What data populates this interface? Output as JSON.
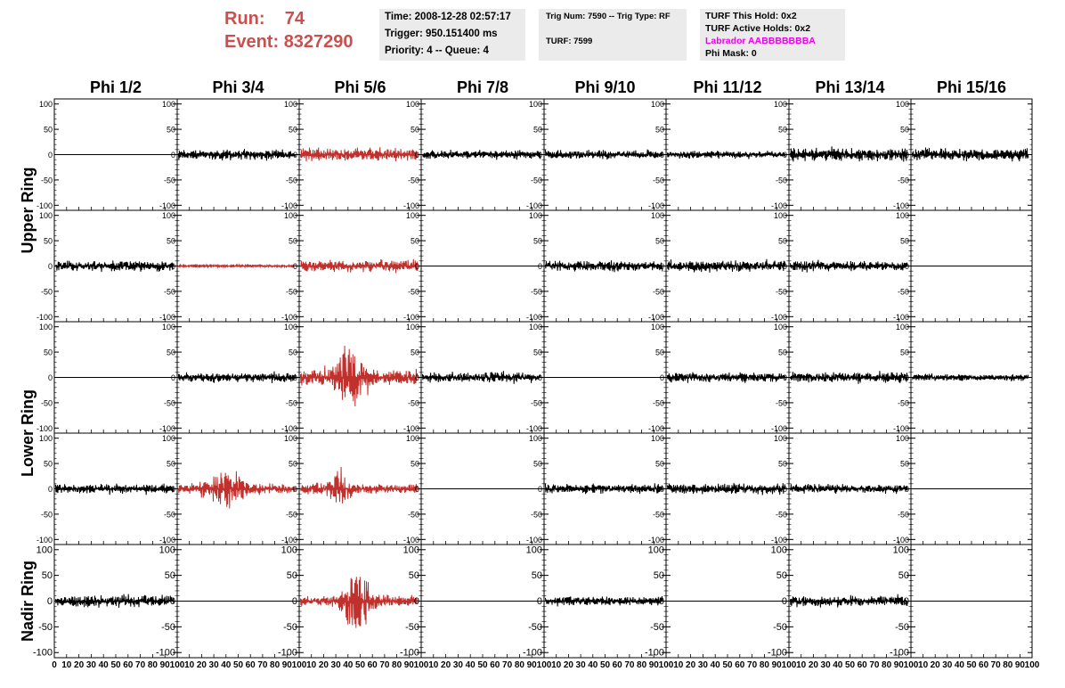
{
  "header": {
    "run_label": "Run:",
    "run_value": "74",
    "event_label": "Event:",
    "event_value": "8327290"
  },
  "info_panel_1": {
    "time": "Time: 2008-12-28 02:57:17",
    "trigger": "Trigger: 950.151400 ms",
    "priority": "Priority: 4 -- Queue: 4"
  },
  "info_panel_2": {
    "trig": "Trig Num: 7590 -- Trig Type: RF",
    "turf": "TURF: 7599"
  },
  "info_panel_3": {
    "this_hold": "TURF This Hold: 0x2",
    "active_holds": "TURF Active Holds: 0x2",
    "labrador": "Labrador AABBBBBBBA",
    "phi_mask": "Phi Mask: 0"
  },
  "colors": {
    "header_red": "#c8504f",
    "trace_black": "#000000",
    "trace_red": "#c0302c",
    "labrador_magenta": "#ee00ee",
    "panel_gray": "#ebebeb"
  },
  "chart_data": {
    "type": "line",
    "columns": [
      "Phi 1/2",
      "Phi 3/4",
      "Phi 5/6",
      "Phi 7/8",
      "Phi 9/10",
      "Phi 11/12",
      "Phi 13/14",
      "Phi 15/16"
    ],
    "row_titles": [
      {
        "label": "Upper Ring",
        "rows": [
          0,
          1
        ]
      },
      {
        "label": "Lower Ring",
        "rows": [
          2,
          3
        ]
      },
      {
        "label": "Nadir Ring",
        "rows": [
          4
        ]
      }
    ],
    "yticks": [
      100,
      50,
      0,
      -50,
      -100
    ],
    "ylim": [
      -110,
      110
    ],
    "xlim": [
      0,
      100
    ],
    "xticks": [
      0,
      10,
      20,
      30,
      40,
      50,
      60,
      70,
      80,
      90,
      100
    ],
    "xtick_labels": [
      "0",
      "10",
      "20",
      "30",
      "40",
      "50",
      "60",
      "70",
      "80",
      "90",
      "100"
    ],
    "last_col_xtick_labels": [
      "10",
      "20",
      "30",
      "40",
      "50",
      "60",
      "70",
      "80",
      "90",
      "100"
    ],
    "panels": [
      [
        {
          "style": "flat"
        },
        {
          "style": "noise",
          "amp": 14,
          "color": "black"
        },
        {
          "style": "noise",
          "amp": 18,
          "color": "red"
        },
        {
          "style": "noise",
          "amp": 12,
          "color": "black"
        },
        {
          "style": "noise",
          "amp": 12,
          "color": "black"
        },
        {
          "style": "noise",
          "amp": 10,
          "color": "black"
        },
        {
          "style": "noise",
          "amp": 18,
          "color": "black"
        },
        {
          "style": "noise",
          "amp": 16,
          "color": "black"
        }
      ],
      [
        {
          "style": "noise",
          "amp": 14,
          "color": "black"
        },
        {
          "style": "noise",
          "amp": 4,
          "color": "red"
        },
        {
          "style": "noise",
          "amp": 16,
          "color": "red"
        },
        {
          "style": "flat"
        },
        {
          "style": "noise",
          "amp": 14,
          "color": "black"
        },
        {
          "style": "noise",
          "amp": 15,
          "color": "black"
        },
        {
          "style": "noise",
          "amp": 14,
          "color": "black"
        },
        {
          "style": "flat"
        }
      ],
      [
        {
          "style": "flat"
        },
        {
          "style": "noise",
          "amp": 13,
          "color": "black"
        },
        {
          "style": "pulse",
          "amp": 20,
          "peak": 90,
          "center": 40,
          "width": 14,
          "color": "red"
        },
        {
          "style": "noise",
          "amp": 14,
          "color": "black"
        },
        {
          "style": "flat"
        },
        {
          "style": "noise",
          "amp": 13,
          "color": "black"
        },
        {
          "style": "noise",
          "amp": 14,
          "color": "black"
        },
        {
          "style": "noise",
          "amp": 10,
          "color": "black"
        }
      ],
      [
        {
          "style": "noise",
          "amp": 13,
          "color": "black"
        },
        {
          "style": "pulse",
          "amp": 14,
          "peak": 55,
          "center": 40,
          "width": 16,
          "color": "red"
        },
        {
          "style": "pulse",
          "amp": 14,
          "peak": 50,
          "center": 33,
          "width": 10,
          "color": "red"
        },
        {
          "style": "flat"
        },
        {
          "style": "noise",
          "amp": 13,
          "color": "black"
        },
        {
          "style": "noise",
          "amp": 14,
          "color": "black"
        },
        {
          "style": "noise",
          "amp": 12,
          "color": "black"
        },
        {
          "style": "flat"
        }
      ],
      [
        {
          "style": "noise",
          "amp": 16,
          "color": "black"
        },
        {
          "style": "flat"
        },
        {
          "style": "pulse",
          "amp": 14,
          "peak": 90,
          "center": 47,
          "width": 11,
          "color": "red"
        },
        {
          "style": "flat"
        },
        {
          "style": "noise",
          "amp": 13,
          "color": "black"
        },
        {
          "style": "flat"
        },
        {
          "style": "noise",
          "amp": 15,
          "color": "black"
        },
        {
          "style": "flat"
        }
      ]
    ]
  }
}
